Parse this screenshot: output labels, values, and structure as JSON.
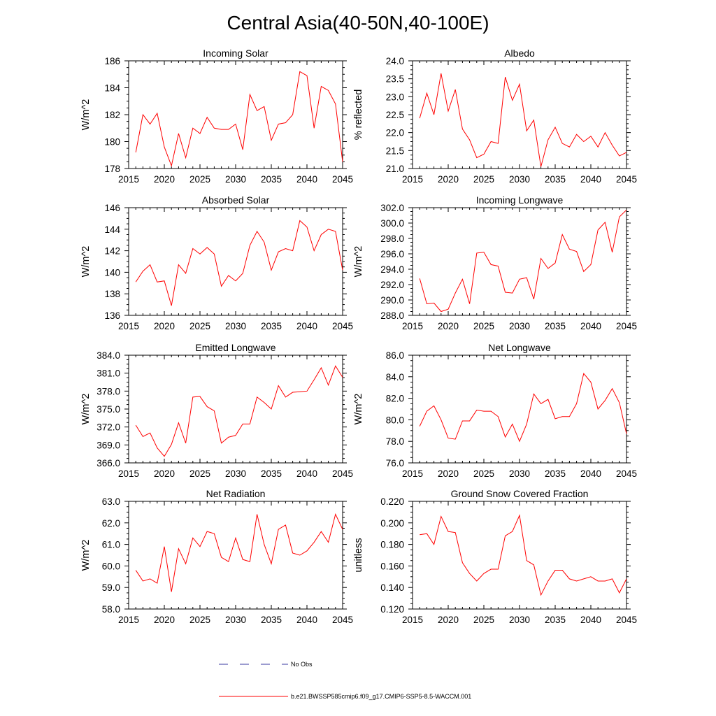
{
  "figure_title": "Central Asia(40-50N,40-100E)",
  "legend": [
    {
      "label": "No Obs",
      "color": "#3a3aa0",
      "style": "dashed"
    },
    {
      "label": "b.e21.BWSSP585cmip6.f09_g17.CMIP6-SSP5-8.5-WACCM.001",
      "color": "#ff0000",
      "style": "solid"
    }
  ],
  "chart_data": [
    {
      "type": "line",
      "title": "Incoming Solar",
      "ylabel": "W/m^2",
      "xlim": [
        2015,
        2045
      ],
      "ylim": [
        178,
        186
      ],
      "x_ticks": [
        "2015",
        "2020",
        "2025",
        "2030",
        "2035",
        "2040",
        "2045"
      ],
      "y_ticks": [
        "178",
        "180",
        "182",
        "184",
        "186"
      ],
      "series": [
        {
          "name": "b.e21.BWSSP585cmip6.f09_g17.CMIP6-SSP5-8.5-WACCM.001",
          "color": "#ff0000",
          "x": [
            2016,
            2017,
            2018,
            2019,
            2020,
            2021,
            2022,
            2023,
            2024,
            2025,
            2026,
            2027,
            2028,
            2029,
            2030,
            2031,
            2032,
            2033,
            2034,
            2035,
            2036,
            2037,
            2038,
            2039,
            2040,
            2041,
            2042,
            2043,
            2044,
            2045
          ],
          "values": [
            179.2,
            182.0,
            181.3,
            182.1,
            179.6,
            178.2,
            180.6,
            178.8,
            181.0,
            180.6,
            181.8,
            181.0,
            180.9,
            180.9,
            181.3,
            179.4,
            183.5,
            182.3,
            182.6,
            180.1,
            181.3,
            181.4,
            182.0,
            185.2,
            184.9,
            181.0,
            184.1,
            183.8,
            182.8,
            178.5
          ]
        }
      ]
    },
    {
      "type": "line",
      "title": "Albedo",
      "ylabel": "% reflected",
      "xlim": [
        2015,
        2045
      ],
      "ylim": [
        21.0,
        24.0
      ],
      "x_ticks": [
        "2015",
        "2020",
        "2025",
        "2030",
        "2035",
        "2040",
        "2045"
      ],
      "y_ticks": [
        "21.0",
        "21.5",
        "22.0",
        "22.5",
        "23.0",
        "23.5",
        "24.0"
      ],
      "series": [
        {
          "name": "b.e21.BWSSP585cmip6.f09_g17.CMIP6-SSP5-8.5-WACCM.001",
          "color": "#ff0000",
          "x": [
            2016,
            2017,
            2018,
            2019,
            2020,
            2021,
            2022,
            2023,
            2024,
            2025,
            2026,
            2027,
            2028,
            2029,
            2030,
            2031,
            2032,
            2033,
            2034,
            2035,
            2036,
            2037,
            2038,
            2039,
            2040,
            2041,
            2042,
            2043,
            2044,
            2045
          ],
          "values": [
            22.4,
            23.1,
            22.5,
            23.65,
            22.6,
            23.2,
            22.1,
            21.8,
            21.3,
            21.4,
            21.75,
            21.7,
            23.55,
            22.9,
            23.35,
            22.05,
            22.35,
            21.05,
            21.8,
            22.15,
            21.7,
            21.6,
            21.95,
            21.75,
            21.9,
            21.6,
            22.0,
            21.65,
            21.35,
            21.45
          ]
        }
      ]
    },
    {
      "type": "line",
      "title": "Absorbed Solar",
      "ylabel": "W/m^2",
      "xlim": [
        2015,
        2045
      ],
      "ylim": [
        136,
        146
      ],
      "x_ticks": [
        "2015",
        "2020",
        "2025",
        "2030",
        "2035",
        "2040",
        "2045"
      ],
      "y_ticks": [
        "136",
        "138",
        "140",
        "142",
        "144",
        "146"
      ],
      "series": [
        {
          "name": "b.e21.BWSSP585cmip6.f09_g17.CMIP6-SSP5-8.5-WACCM.001",
          "color": "#ff0000",
          "x": [
            2016,
            2017,
            2018,
            2019,
            2020,
            2021,
            2022,
            2023,
            2024,
            2025,
            2026,
            2027,
            2028,
            2029,
            2030,
            2031,
            2032,
            2033,
            2034,
            2035,
            2036,
            2037,
            2038,
            2039,
            2040,
            2041,
            2042,
            2043,
            2044,
            2045
          ],
          "values": [
            139.1,
            140.1,
            140.7,
            139.1,
            139.2,
            136.9,
            140.7,
            139.9,
            142.2,
            141.7,
            142.3,
            141.7,
            138.7,
            139.7,
            139.2,
            139.9,
            142.5,
            143.8,
            142.8,
            140.2,
            141.9,
            142.2,
            142.0,
            144.8,
            144.2,
            142.0,
            143.5,
            144.0,
            143.8,
            140.2
          ]
        }
      ]
    },
    {
      "type": "line",
      "title": "Incoming Longwave",
      "ylabel": "W/m^2",
      "xlim": [
        2015,
        2045
      ],
      "ylim": [
        288.0,
        302.0
      ],
      "x_ticks": [
        "2015",
        "2020",
        "2025",
        "2030",
        "2035",
        "2040",
        "2045"
      ],
      "y_ticks": [
        "288.0",
        "290.0",
        "292.0",
        "294.0",
        "296.0",
        "298.0",
        "300.0",
        "302.0"
      ],
      "series": [
        {
          "name": "b.e21.BWSSP585cmip6.f09_g17.CMIP6-SSP5-8.5-WACCM.001",
          "color": "#ff0000",
          "x": [
            2016,
            2017,
            2018,
            2019,
            2020,
            2021,
            2022,
            2023,
            2024,
            2025,
            2026,
            2027,
            2028,
            2029,
            2030,
            2031,
            2032,
            2033,
            2034,
            2035,
            2036,
            2037,
            2038,
            2039,
            2040,
            2041,
            2042,
            2043,
            2044,
            2045
          ],
          "values": [
            292.8,
            289.5,
            289.6,
            288.5,
            288.8,
            290.9,
            292.7,
            289.5,
            296.1,
            296.2,
            294.6,
            294.4,
            291.0,
            290.9,
            292.7,
            292.9,
            290.1,
            295.4,
            294.1,
            294.8,
            298.5,
            296.6,
            296.3,
            293.7,
            294.6,
            299.1,
            300.1,
            296.2,
            300.8,
            301.7
          ]
        }
      ]
    },
    {
      "type": "line",
      "title": "Emitted Longwave",
      "ylabel": "W/m^2",
      "xlim": [
        2015,
        2045
      ],
      "ylim": [
        366.0,
        384.0
      ],
      "x_ticks": [
        "2015",
        "2020",
        "2025",
        "2030",
        "2035",
        "2040",
        "2045"
      ],
      "y_ticks": [
        "366.0",
        "369.0",
        "372.0",
        "375.0",
        "378.0",
        "381.0",
        "384.0"
      ],
      "series": [
        {
          "name": "b.e21.BWSSP585cmip6.f09_g17.CMIP6-SSP5-8.5-WACCM.001",
          "color": "#ff0000",
          "x": [
            2016,
            2017,
            2018,
            2019,
            2020,
            2021,
            2022,
            2023,
            2024,
            2025,
            2026,
            2027,
            2028,
            2029,
            2030,
            2031,
            2032,
            2033,
            2034,
            2035,
            2036,
            2037,
            2038,
            2039,
            2040,
            2041,
            2042,
            2043,
            2044,
            2045
          ],
          "values": [
            372.3,
            370.4,
            371.0,
            368.5,
            367.1,
            369.1,
            372.7,
            369.3,
            377.0,
            377.1,
            375.4,
            374.7,
            369.3,
            370.3,
            370.6,
            372.5,
            372.5,
            377.0,
            376.1,
            375.0,
            378.9,
            377.0,
            377.8,
            377.9,
            378.0,
            379.9,
            381.9,
            379.0,
            382.2,
            380.3
          ]
        }
      ]
    },
    {
      "type": "line",
      "title": "Net Longwave",
      "ylabel": "W/m^2",
      "xlim": [
        2015,
        2045
      ],
      "ylim": [
        76.0,
        86.0
      ],
      "x_ticks": [
        "2015",
        "2020",
        "2025",
        "2030",
        "2035",
        "2040",
        "2045"
      ],
      "y_ticks": [
        "76.0",
        "78.0",
        "80.0",
        "82.0",
        "84.0",
        "86.0"
      ],
      "series": [
        {
          "name": "b.e21.BWSSP585cmip6.f09_g17.CMIP6-SSP5-8.5-WACCM.001",
          "color": "#ff0000",
          "x": [
            2016,
            2017,
            2018,
            2019,
            2020,
            2021,
            2022,
            2023,
            2024,
            2025,
            2026,
            2027,
            2028,
            2029,
            2030,
            2031,
            2032,
            2033,
            2034,
            2035,
            2036,
            2037,
            2038,
            2039,
            2040,
            2041,
            2042,
            2043,
            2044,
            2045
          ],
          "values": [
            79.4,
            80.8,
            81.3,
            80.0,
            78.3,
            78.2,
            79.9,
            79.9,
            80.9,
            80.8,
            80.8,
            80.3,
            78.4,
            79.6,
            78.0,
            79.6,
            82.4,
            81.5,
            81.9,
            80.1,
            80.3,
            80.3,
            81.5,
            84.3,
            83.5,
            81.0,
            81.8,
            82.9,
            81.6,
            78.7
          ]
        }
      ]
    },
    {
      "type": "line",
      "title": "Net Radiation",
      "ylabel": "W/m^2",
      "xlim": [
        2015,
        2045
      ],
      "ylim": [
        58.0,
        63.0
      ],
      "x_ticks": [
        "2015",
        "2020",
        "2025",
        "2030",
        "2035",
        "2040",
        "2045"
      ],
      "y_ticks": [
        "58.0",
        "59.0",
        "60.0",
        "61.0",
        "62.0",
        "63.0"
      ],
      "series": [
        {
          "name": "b.e21.BWSSP585cmip6.f09_g17.CMIP6-SSP5-8.5-WACCM.001",
          "color": "#ff0000",
          "x": [
            2016,
            2017,
            2018,
            2019,
            2020,
            2021,
            2022,
            2023,
            2024,
            2025,
            2026,
            2027,
            2028,
            2029,
            2030,
            2031,
            2032,
            2033,
            2034,
            2035,
            2036,
            2037,
            2038,
            2039,
            2040,
            2041,
            2042,
            2043,
            2044,
            2045
          ],
          "values": [
            59.8,
            59.3,
            59.4,
            59.2,
            60.9,
            58.8,
            60.8,
            60.1,
            61.3,
            60.9,
            61.6,
            61.5,
            60.4,
            60.2,
            61.3,
            60.3,
            60.2,
            62.4,
            61.0,
            60.1,
            61.7,
            61.9,
            60.6,
            60.5,
            60.7,
            61.1,
            61.6,
            61.1,
            62.4,
            61.7
          ]
        }
      ]
    },
    {
      "type": "line",
      "title": "Ground Snow Covered Fraction",
      "ylabel": "unitless",
      "xlim": [
        2015,
        2045
      ],
      "ylim": [
        0.12,
        0.22
      ],
      "x_ticks": [
        "2015",
        "2020",
        "2025",
        "2030",
        "2035",
        "2040",
        "2045"
      ],
      "y_ticks": [
        "0.120",
        "0.140",
        "0.160",
        "0.180",
        "0.200",
        "0.220"
      ],
      "series": [
        {
          "name": "b.e21.BWSSP585cmip6.f09_g17.CMIP6-SSP5-8.5-WACCM.001",
          "color": "#ff0000",
          "x": [
            2016,
            2017,
            2018,
            2019,
            2020,
            2021,
            2022,
            2023,
            2024,
            2025,
            2026,
            2027,
            2028,
            2029,
            2030,
            2031,
            2032,
            2033,
            2034,
            2035,
            2036,
            2037,
            2038,
            2039,
            2040,
            2041,
            2042,
            2043,
            2044,
            2045
          ],
          "values": [
            0.189,
            0.19,
            0.18,
            0.206,
            0.192,
            0.191,
            0.163,
            0.153,
            0.146,
            0.153,
            0.157,
            0.157,
            0.188,
            0.192,
            0.207,
            0.165,
            0.161,
            0.133,
            0.146,
            0.156,
            0.156,
            0.148,
            0.146,
            0.148,
            0.15,
            0.146,
            0.146,
            0.148,
            0.135,
            0.148
          ]
        }
      ]
    }
  ]
}
